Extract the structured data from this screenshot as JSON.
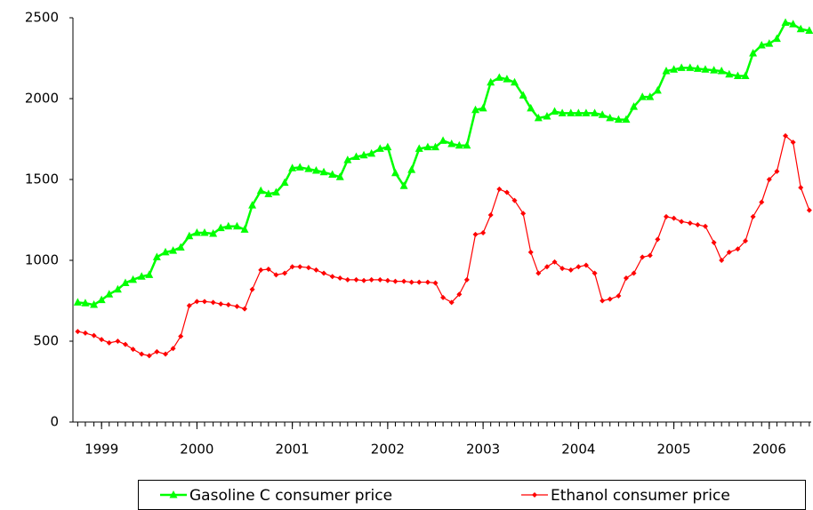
{
  "chart_data": {
    "type": "line",
    "x": [
      1998.75,
      1998.83,
      1998.92,
      1999,
      1999.08,
      1999.17,
      1999.25,
      1999.33,
      1999.42,
      1999.5,
      1999.58,
      1999.67,
      1999.75,
      1999.83,
      1999.92,
      2000,
      2000.08,
      2000.17,
      2000.25,
      2000.33,
      2000.42,
      2000.5,
      2000.58,
      2000.67,
      2000.75,
      2000.83,
      2000.92,
      2001,
      2001.08,
      2001.17,
      2001.25,
      2001.33,
      2001.42,
      2001.5,
      2001.58,
      2001.67,
      2001.75,
      2001.83,
      2001.92,
      2002,
      2002.08,
      2002.17,
      2002.25,
      2002.33,
      2002.42,
      2002.5,
      2002.58,
      2002.67,
      2002.75,
      2002.83,
      2002.92,
      2003,
      2003.08,
      2003.17,
      2003.25,
      2003.33,
      2003.42,
      2003.5,
      2003.58,
      2003.67,
      2003.75,
      2003.83,
      2003.92,
      2004,
      2004.08,
      2004.17,
      2004.25,
      2004.33,
      2004.42,
      2004.5,
      2004.58,
      2004.67,
      2004.75,
      2004.83,
      2004.92,
      2005,
      2005.08,
      2005.17,
      2005.25,
      2005.33,
      2005.42,
      2005.5,
      2005.58,
      2005.67,
      2005.75,
      2005.83,
      2005.92,
      2006,
      2006.08,
      2006.17,
      2006.25,
      2006.33,
      2006.42
    ],
    "series": [
      {
        "name": "Gasoline C consumer price",
        "color": "#00ff00",
        "marker": "triangle",
        "values": [
          740,
          735,
          725,
          755,
          790,
          820,
          860,
          880,
          900,
          910,
          1020,
          1050,
          1060,
          1080,
          1150,
          1170,
          1170,
          1165,
          1200,
          1210,
          1210,
          1190,
          1340,
          1430,
          1410,
          1420,
          1480,
          1570,
          1575,
          1565,
          1555,
          1545,
          1530,
          1515,
          1620,
          1640,
          1650,
          1660,
          1690,
          1700,
          1540,
          1460,
          1560,
          1690,
          1700,
          1700,
          1740,
          1720,
          1710,
          1710,
          1930,
          1940,
          2100,
          2130,
          2120,
          2100,
          2020,
          1940,
          1880,
          1890,
          1920,
          1910,
          1910,
          1910,
          1910,
          1910,
          1900,
          1880,
          1870,
          1870,
          1950,
          2010,
          2010,
          2050,
          2170,
          2180,
          2190,
          2190,
          2185,
          2180,
          2175,
          2170,
          2150,
          2140,
          2140,
          2280,
          2330,
          2340,
          2370,
          2470,
          2460,
          2430,
          2420
        ]
      },
      {
        "name": "Ethanol consumer price",
        "color": "#ff0000",
        "marker": "diamond",
        "values": [
          560,
          550,
          535,
          510,
          490,
          500,
          480,
          450,
          420,
          410,
          435,
          420,
          455,
          530,
          720,
          745,
          745,
          740,
          730,
          725,
          715,
          700,
          820,
          940,
          945,
          910,
          920,
          960,
          960,
          955,
          940,
          920,
          900,
          890,
          880,
          880,
          875,
          880,
          880,
          875,
          870,
          870,
          865,
          865,
          865,
          860,
          770,
          740,
          790,
          880,
          1160,
          1170,
          1280,
          1440,
          1420,
          1370,
          1290,
          1050,
          920,
          960,
          990,
          950,
          940,
          960,
          970,
          920,
          750,
          760,
          780,
          890,
          920,
          1020,
          1030,
          1130,
          1270,
          1260,
          1240,
          1230,
          1220,
          1210,
          1110,
          1000,
          1050,
          1070,
          1120,
          1270,
          1360,
          1500,
          1550,
          1770,
          1730,
          1450,
          1310
        ]
      }
    ],
    "xlim": [
      1998.7,
      2006.44
    ],
    "xticks": [
      1999,
      2000,
      2001,
      2002,
      2003,
      2004,
      2005,
      2006
    ],
    "ylim": [
      0,
      2500
    ],
    "yticks": [
      0,
      500,
      1000,
      1500,
      2000,
      2500
    ],
    "grid": false
  }
}
